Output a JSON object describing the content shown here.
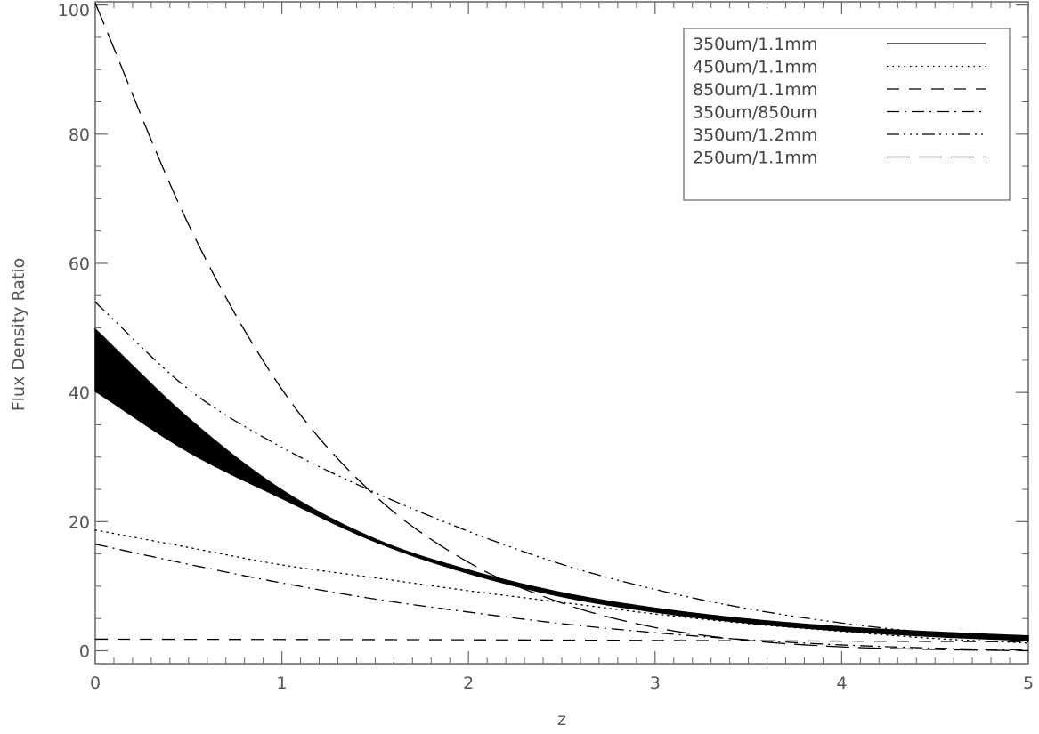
{
  "chart_data": {
    "type": "line",
    "title": "",
    "xlabel": "z",
    "ylabel": "Flux Density Ratio",
    "xlim": [
      0,
      5
    ],
    "ylim": [
      -2,
      100.5
    ],
    "grid": false,
    "legend_position": "top-right",
    "x_ticks": [
      0,
      1,
      2,
      3,
      4,
      5
    ],
    "x_tick_labels": [
      "0",
      "1",
      "2",
      "3",
      "4",
      "5"
    ],
    "y_ticks": [
      0,
      20,
      40,
      60,
      80,
      100
    ],
    "y_tick_labels": [
      "0",
      "20",
      "40",
      "60",
      "80",
      "100"
    ],
    "line_color": "#000000",
    "axis_color": "#666666",
    "series": [
      {
        "name": "350um/1.1mm",
        "style": "solid",
        "band": true,
        "x": [
          0,
          0.5,
          1.0,
          1.5,
          2.0,
          2.5,
          3.0,
          3.5,
          4.0,
          4.5,
          5.0
        ],
        "upper": [
          49.8,
          36.0,
          24.9,
          17.3,
          12.5,
          9.0,
          6.6,
          4.9,
          3.7,
          2.9,
          2.3
        ],
        "lower": [
          40.2,
          30.8,
          23.6,
          16.9,
          12.0,
          8.4,
          6.0,
          4.3,
          3.1,
          2.2,
          1.6
        ]
      },
      {
        "name": "450um/1.1mm",
        "style": "dotted",
        "x": [
          0,
          0.5,
          1.0,
          1.5,
          2.0,
          2.5,
          3.0,
          3.5,
          4.0,
          4.5,
          5.0
        ],
        "y": [
          18.7,
          16.0,
          13.3,
          11.3,
          9.3,
          7.5,
          5.7,
          4.2,
          3.0,
          1.9,
          1.2
        ]
      },
      {
        "name": "850um/1.1mm",
        "style": "dashed",
        "x": [
          0,
          1,
          2,
          3,
          4,
          5
        ],
        "y": [
          1.8,
          1.75,
          1.7,
          1.6,
          1.5,
          1.4
        ]
      },
      {
        "name": "350um/850um",
        "style": "dash-dot",
        "x": [
          0,
          0.5,
          1.0,
          1.5,
          2.0,
          2.5,
          3.0,
          3.5,
          4.0,
          4.5,
          5.0
        ],
        "y": [
          16.5,
          13.4,
          10.5,
          8.0,
          6.0,
          4.2,
          2.8,
          1.7,
          0.9,
          0.4,
          0.1
        ]
      },
      {
        "name": "350um/1.2mm",
        "style": "dash-dot-dot-dot",
        "x": [
          0,
          0.5,
          1.0,
          1.5,
          2.0,
          2.5,
          3.0,
          3.5,
          4.0,
          4.5,
          5.0
        ],
        "y": [
          54.0,
          40.5,
          31.5,
          24.5,
          18.5,
          13.4,
          9.5,
          6.5,
          4.3,
          2.7,
          1.4
        ]
      },
      {
        "name": "250um/1.1mm",
        "style": "long-dash",
        "x": [
          0,
          0.5,
          1.0,
          1.5,
          2.0,
          2.5,
          3.0,
          3.5,
          4.0,
          4.5,
          5.0
        ],
        "y": [
          100.3,
          66.0,
          40.5,
          24.0,
          13.7,
          7.4,
          3.6,
          1.6,
          0.6,
          0.2,
          0.0
        ]
      }
    ]
  }
}
